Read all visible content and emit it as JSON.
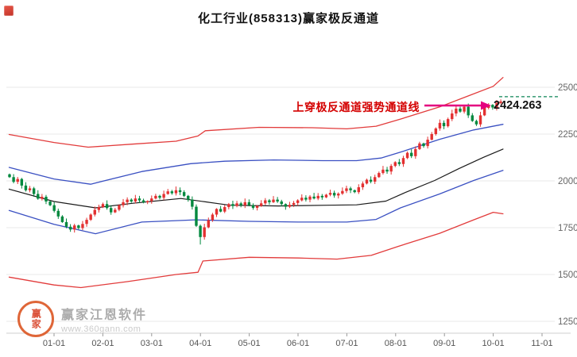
{
  "title": "化工行业(858313)赢家极反通道",
  "annotation": {
    "text": "上穿极反通道强势通道线",
    "text_color": "#d40000",
    "arrow_color": "#e4007f"
  },
  "price_label": "2424.263",
  "watermark": {
    "logo_text": "赢家",
    "name": "赢家江恩软件",
    "url": "www.360gann.com"
  },
  "chart_data": {
    "type": "candlestick",
    "title": "化工行业(858313)赢家极反通道",
    "x_labels": [
      "01-01",
      "02-01",
      "03-01",
      "04-01",
      "05-01",
      "06-01",
      "07-01",
      "08-01",
      "09-01",
      "10-01",
      "11-01"
    ],
    "y_ticks": [
      1250,
      1500,
      1750,
      2000,
      2250,
      2500
    ],
    "ylim": [
      1230,
      2560
    ],
    "grid": "horizontal",
    "legend": "none",
    "last_price": 2424.263,
    "up_color": "#e33030",
    "down_color": "#00883e",
    "guide_dash_color": "#0b8457",
    "first_open": 2035,
    "closes": [
      2020,
      1995,
      2010,
      1975,
      1950,
      1960,
      1930,
      1905,
      1915,
      1890,
      1870,
      1840,
      1810,
      1780,
      1755,
      1740,
      1762,
      1748,
      1770,
      1792,
      1820,
      1845,
      1860,
      1876,
      1855,
      1832,
      1846,
      1870,
      1886,
      1900,
      1890,
      1906,
      1896,
      1886,
      1892,
      1906,
      1920,
      1910,
      1930,
      1944,
      1934,
      1950,
      1940,
      1920,
      1900,
      1862,
      1760,
      1700,
      1752,
      1790,
      1820,
      1850,
      1836,
      1860,
      1876,
      1866,
      1880,
      1870,
      1886,
      1870,
      1856,
      1866,
      1880,
      1896,
      1886,
      1900,
      1890,
      1876,
      1862,
      1872,
      1882,
      1896,
      1910,
      1900,
      1916,
      1906,
      1920,
      1912,
      1926,
      1936,
      1922,
      1932,
      1946,
      1960,
      1950,
      1940,
      1966,
      1986,
      2006,
      1996,
      2020,
      2042,
      2060,
      2050,
      2080,
      2100,
      2090,
      2122,
      2150,
      2132,
      2170,
      2200,
      2186,
      2220,
      2250,
      2280,
      2310,
      2292,
      2330,
      2360,
      2386,
      2370,
      2396,
      2350,
      2320,
      2302,
      2350,
      2390,
      2406,
      2392,
      2416,
      2424.263
    ],
    "low_overrides": {
      "47": 1660
    },
    "channel_lines": [
      {
        "name": "upper-extreme-red",
        "color": "#e23b3b",
        "width": 1.3,
        "points": [
          [
            -0.92,
            2248
          ],
          [
            0.0,
            2205
          ],
          [
            0.7,
            2180
          ],
          [
            1.6,
            2196
          ],
          [
            2.5,
            2212
          ],
          [
            2.95,
            2240
          ],
          [
            3.1,
            2268
          ],
          [
            4.2,
            2286
          ],
          [
            5.3,
            2284
          ],
          [
            6.0,
            2278
          ],
          [
            6.6,
            2292
          ],
          [
            7.1,
            2330
          ],
          [
            7.9,
            2395
          ],
          [
            8.5,
            2455
          ],
          [
            9.0,
            2505
          ],
          [
            9.2,
            2552
          ]
        ]
      },
      {
        "name": "upper-strong-blue",
        "color": "#3a50c2",
        "width": 1.3,
        "points": [
          [
            -0.92,
            2072
          ],
          [
            0.0,
            2010
          ],
          [
            0.75,
            1982
          ],
          [
            1.8,
            2050
          ],
          [
            2.8,
            2092
          ],
          [
            3.5,
            2105
          ],
          [
            4.5,
            2112
          ],
          [
            5.5,
            2108
          ],
          [
            6.2,
            2108
          ],
          [
            6.7,
            2122
          ],
          [
            7.2,
            2162
          ],
          [
            7.9,
            2222
          ],
          [
            8.6,
            2272
          ],
          [
            9.2,
            2302
          ]
        ]
      },
      {
        "name": "middle-black",
        "color": "#1a1a1a",
        "width": 1.2,
        "points": [
          [
            -0.92,
            1956
          ],
          [
            0.0,
            1890
          ],
          [
            0.85,
            1856
          ],
          [
            1.6,
            1880
          ],
          [
            2.6,
            1906
          ],
          [
            3.1,
            1888
          ],
          [
            3.6,
            1870
          ],
          [
            4.6,
            1866
          ],
          [
            5.6,
            1870
          ],
          [
            6.2,
            1872
          ],
          [
            6.8,
            1892
          ],
          [
            7.2,
            1938
          ],
          [
            7.8,
            2002
          ],
          [
            8.3,
            2066
          ],
          [
            8.8,
            2126
          ],
          [
            9.2,
            2170
          ]
        ]
      },
      {
        "name": "lower-strong-blue",
        "color": "#3a50c2",
        "width": 1.3,
        "points": [
          [
            -0.92,
            1842
          ],
          [
            0.0,
            1768
          ],
          [
            0.85,
            1718
          ],
          [
            1.8,
            1780
          ],
          [
            2.9,
            1792
          ],
          [
            4.0,
            1784
          ],
          [
            5.0,
            1780
          ],
          [
            6.0,
            1780
          ],
          [
            6.6,
            1794
          ],
          [
            7.1,
            1856
          ],
          [
            7.9,
            1930
          ],
          [
            8.6,
            2002
          ],
          [
            9.2,
            2056
          ]
        ]
      },
      {
        "name": "lower-extreme-red",
        "color": "#e23b3b",
        "width": 1.3,
        "points": [
          [
            -0.92,
            1486
          ],
          [
            0.0,
            1444
          ],
          [
            0.55,
            1430
          ],
          [
            1.5,
            1462
          ],
          [
            2.5,
            1500
          ],
          [
            2.95,
            1512
          ],
          [
            3.05,
            1572
          ],
          [
            4.0,
            1592
          ],
          [
            5.0,
            1588
          ],
          [
            5.8,
            1582
          ],
          [
            6.5,
            1602
          ],
          [
            7.05,
            1650
          ],
          [
            7.9,
            1720
          ],
          [
            8.6,
            1792
          ],
          [
            9.0,
            1832
          ],
          [
            9.2,
            1824
          ]
        ]
      }
    ]
  }
}
